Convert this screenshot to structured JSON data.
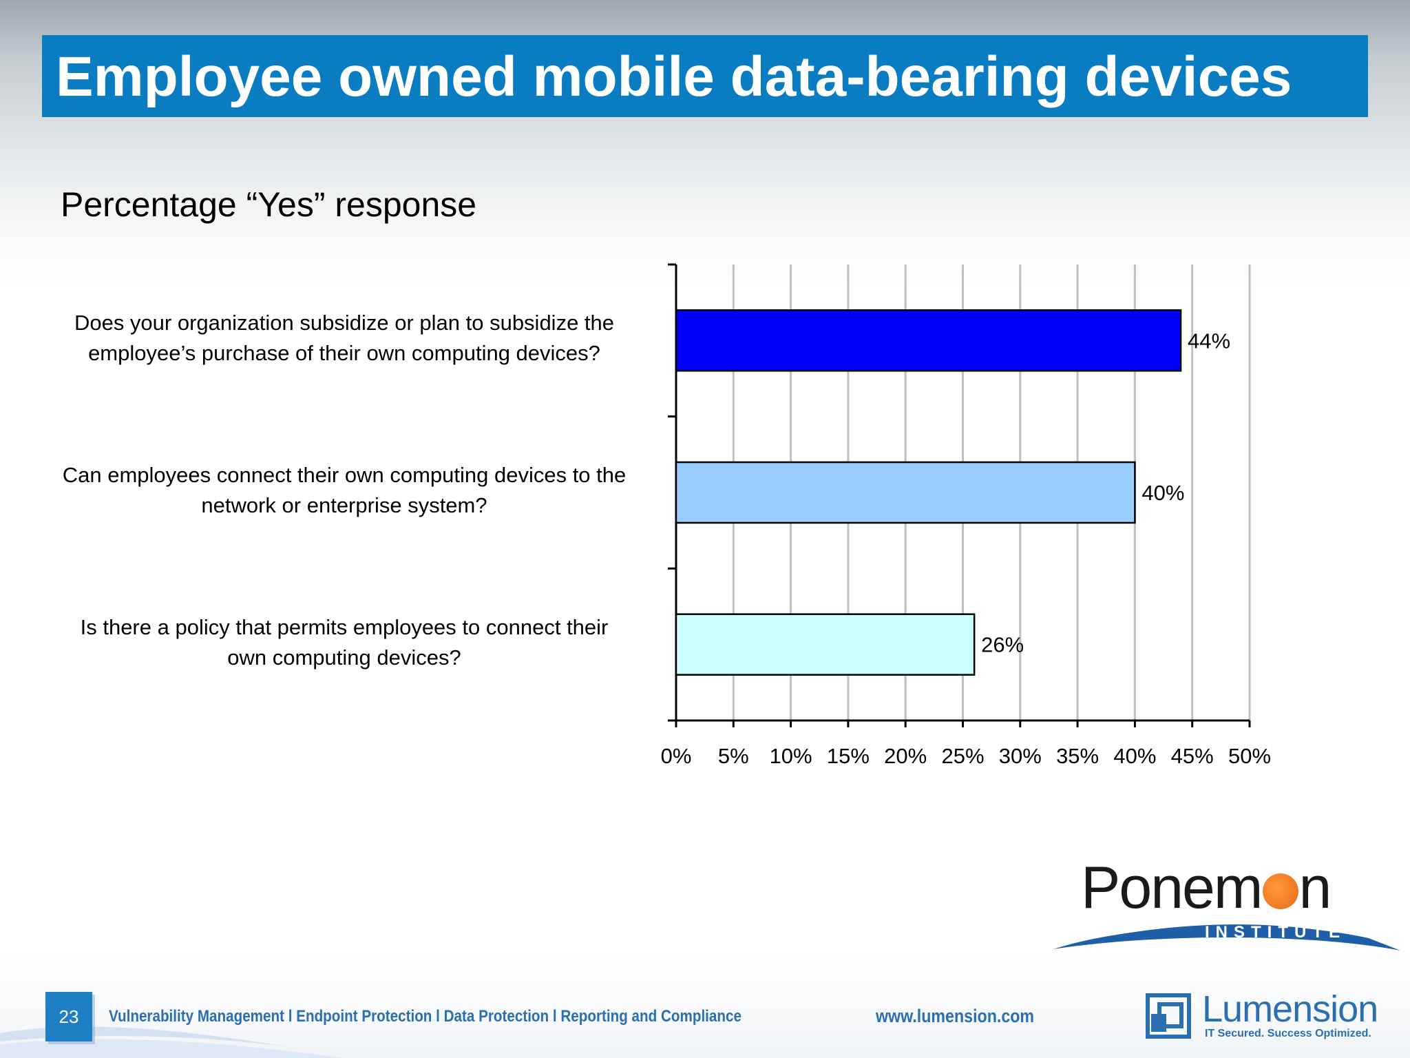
{
  "slide": {
    "title": "Employee owned mobile data-bearing devices",
    "subtitle": "Percentage “Yes” response",
    "page_number": "23"
  },
  "colors": {
    "title_bar": "#0a7dc2",
    "bar_1": "#0000ff",
    "bar_2": "#99ccff",
    "bar_3": "#ccffff",
    "footer_text": "#2a6fb0",
    "ponemon_swoosh": "#1f5fa8",
    "ponemon_dot": "#f08030"
  },
  "chart_data": {
    "type": "bar",
    "orientation": "horizontal",
    "title": "Percentage “Yes” response",
    "categories": [
      {
        "lines": [
          "Does your organization subsidize or plan to subsidize the",
          "employee’s purchase of their own computing devices?"
        ]
      },
      {
        "lines": [
          "Can employees connect their own computing devices to the",
          "network or enterprise system?"
        ]
      },
      {
        "lines": [
          "Is there a policy that permits employees to connect their",
          "own computing devices?"
        ]
      }
    ],
    "values": [
      44,
      40,
      26
    ],
    "value_labels": [
      "44%",
      "40%",
      "26%"
    ],
    "xlim": [
      0,
      50
    ],
    "xticks": [
      0,
      5,
      10,
      15,
      20,
      25,
      30,
      35,
      40,
      45,
      50
    ],
    "xtick_labels": [
      "0%",
      "5%",
      "10%",
      "15%",
      "20%",
      "25%",
      "30%",
      "35%",
      "40%",
      "45%",
      "50%"
    ],
    "grid": true,
    "legend": "none",
    "xlabel": "",
    "ylabel": ""
  },
  "footer": {
    "tagline": "Vulnerability Management l Endpoint Protection l Data Protection l Reporting and Compliance",
    "url": "www.lumension.com"
  },
  "logos": {
    "ponemon": {
      "word_before": "Ponem",
      "word_after": "n",
      "sub": "INSTITUTE",
      "icon": "ponemon-logo"
    },
    "lumension": {
      "name": "Lumension",
      "tagline": "IT Secured. Success Optimized.",
      "icon": "lumension-logo-icon"
    }
  }
}
